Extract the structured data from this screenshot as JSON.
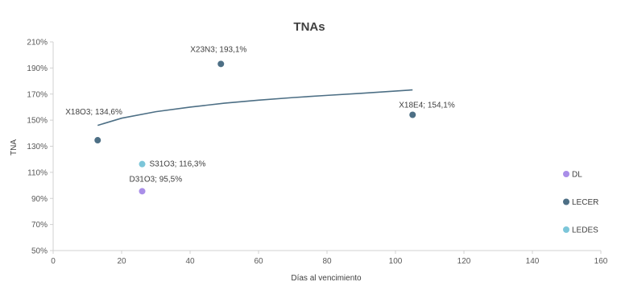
{
  "chart_data": {
    "type": "scatter",
    "title": "TNAs",
    "xlabel": "Días al vencimiento",
    "ylabel": "TNA",
    "xlim": [
      0,
      160
    ],
    "ylim": [
      50,
      210
    ],
    "x_ticks": [
      0,
      20,
      40,
      60,
      80,
      100,
      120,
      140,
      160
    ],
    "y_ticks": [
      50,
      70,
      90,
      110,
      130,
      150,
      170,
      190,
      210
    ],
    "y_tick_labels": [
      "50%",
      "70%",
      "90%",
      "110%",
      "130%",
      "150%",
      "170%",
      "190%",
      "210%"
    ],
    "grid": false,
    "legend_position": "right",
    "series": [
      {
        "name": "DL",
        "color": "#a98ee8",
        "points": [
          {
            "x": 26,
            "y": 95.5,
            "label": "D31O3; 95,5%"
          }
        ]
      },
      {
        "name": "LECER",
        "color": "#4d6f85",
        "points": [
          {
            "x": 13,
            "y": 134.6,
            "label": "X18O3; 134,6%"
          },
          {
            "x": 49,
            "y": 193.1,
            "label": "X23N3; 193,1%"
          },
          {
            "x": 105,
            "y": 154.1,
            "label": "X18E4; 154,1%"
          }
        ]
      },
      {
        "name": "LEDES",
        "color": "#7cc6d9",
        "points": [
          {
            "x": 26,
            "y": 116.3,
            "label": "S31O3; 116,3%"
          }
        ]
      }
    ],
    "trendline": {
      "series": "LECER",
      "type": "logarithmic",
      "color": "#4d6f85",
      "x_range": [
        13,
        105
      ],
      "points": [
        {
          "x": 13,
          "y": 146
        },
        {
          "x": 20,
          "y": 151.5
        },
        {
          "x": 30,
          "y": 156.5
        },
        {
          "x": 40,
          "y": 160
        },
        {
          "x": 50,
          "y": 163
        },
        {
          "x": 60,
          "y": 165.3
        },
        {
          "x": 70,
          "y": 167.3
        },
        {
          "x": 80,
          "y": 169
        },
        {
          "x": 90,
          "y": 170.6
        },
        {
          "x": 105,
          "y": 173.2
        }
      ]
    }
  }
}
